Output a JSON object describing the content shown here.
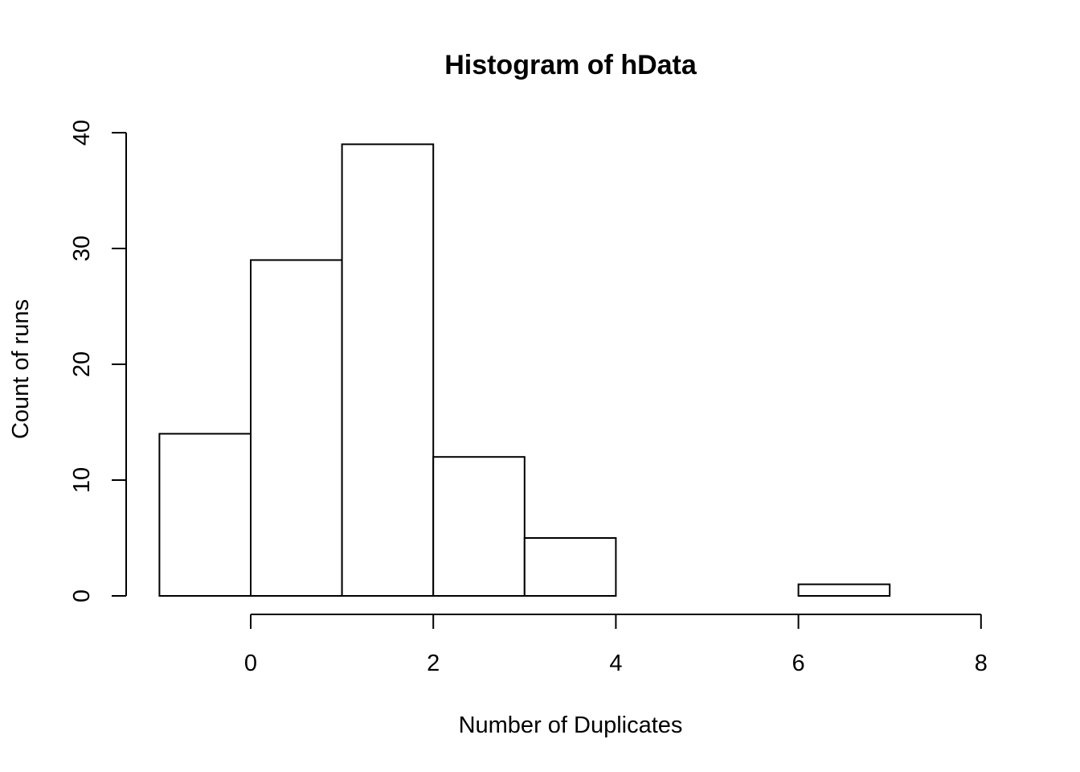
{
  "chart_data": {
    "type": "bar",
    "title": "Histogram of hData",
    "xlabel": "Number of Duplicates",
    "ylabel": "Count of runs",
    "bins": [
      {
        "start": -1,
        "end": 0,
        "count": 14
      },
      {
        "start": 0,
        "end": 1,
        "count": 29
      },
      {
        "start": 1,
        "end": 2,
        "count": 39
      },
      {
        "start": 2,
        "end": 3,
        "count": 12
      },
      {
        "start": 3,
        "end": 4,
        "count": 5
      },
      {
        "start": 4,
        "end": 5,
        "count": 0
      },
      {
        "start": 5,
        "end": 6,
        "count": 0
      },
      {
        "start": 6,
        "end": 7,
        "count": 1
      },
      {
        "start": 7,
        "end": 8,
        "count": 0
      }
    ],
    "xlim": [
      -1,
      8
    ],
    "ylim": [
      0,
      40
    ],
    "x_ticks": [
      0,
      2,
      4,
      6,
      8
    ],
    "y_ticks": [
      0,
      10,
      20,
      30,
      40
    ],
    "grid": false,
    "bar_fill": "#ffffff",
    "bar_stroke": "#000000"
  }
}
